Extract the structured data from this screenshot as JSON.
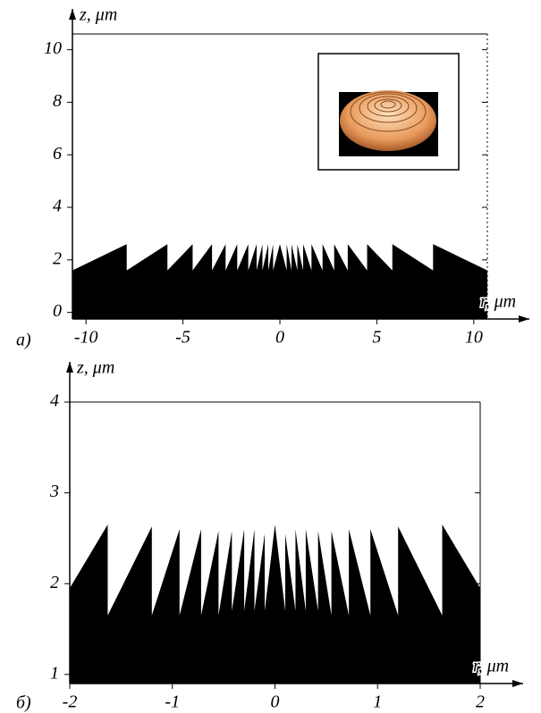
{
  "chart_data": [
    {
      "type": "area",
      "panel_label": "a)",
      "x_label": "r, μm",
      "y_label": "z, μm",
      "xlim": [
        -10.7,
        10.7
      ],
      "ylim": [
        -0.25,
        10.6
      ],
      "xticks": [
        -10,
        -5,
        0,
        5,
        10
      ],
      "yticks": [
        0,
        2,
        4,
        6,
        8,
        10
      ],
      "series": [
        {
          "color": "#000000",
          "x": [
            -10.7,
            -7.9,
            -7.9,
            -5.8,
            -5.8,
            -4.5,
            -4.5,
            -3.5,
            -3.5,
            -2.8,
            -2.8,
            -2.2,
            -2.2,
            -1.63,
            -1.63,
            -1.2,
            -1.2,
            -0.9,
            -0.9,
            -0.6,
            -0.6,
            -0.35,
            -0.35,
            0,
            0.35,
            0.35,
            0.6,
            0.6,
            0.9,
            0.9,
            1.2,
            1.2,
            1.63,
            1.63,
            2.2,
            2.2,
            2.8,
            2.8,
            3.5,
            3.5,
            4.5,
            4.5,
            5.8,
            5.8,
            7.9,
            7.9,
            10.7
          ],
          "values": [
            1.6,
            2.6,
            1.6,
            2.6,
            1.6,
            2.6,
            1.6,
            2.6,
            1.6,
            2.6,
            1.6,
            2.6,
            1.6,
            2.6,
            1.6,
            2.6,
            1.6,
            2.6,
            1.6,
            2.6,
            1.6,
            2.6,
            1.6,
            2.6,
            1.6,
            2.6,
            1.6,
            2.6,
            1.6,
            2.6,
            1.6,
            2.6,
            1.6,
            2.6,
            1.6,
            2.6,
            1.6,
            2.6,
            1.6,
            2.6,
            1.6,
            2.6,
            1.6,
            2.6,
            1.6,
            2.6,
            1.6
          ]
        }
      ]
    },
    {
      "type": "area",
      "panel_label": "б)",
      "x_label": "r, μm",
      "y_label": "z, μm",
      "xlim": [
        -2,
        2
      ],
      "ylim": [
        0.9,
        4
      ],
      "xticks": [
        -2,
        -1,
        0,
        1,
        2
      ],
      "yticks": [
        1,
        2,
        3,
        4
      ],
      "series": [
        {
          "color": "#000000",
          "x": [
            -2,
            -1.63,
            -1.63,
            -1.2,
            -1.2,
            -0.93,
            -0.93,
            -0.72,
            -0.72,
            -0.55,
            -0.55,
            -0.42,
            -0.42,
            -0.3,
            -0.3,
            -0.2,
            -0.2,
            -0.1,
            -0.1,
            0,
            0.1,
            0.1,
            0.2,
            0.2,
            0.3,
            0.3,
            0.42,
            0.42,
            0.55,
            0.55,
            0.72,
            0.72,
            0.93,
            0.93,
            1.2,
            1.2,
            1.63,
            1.63,
            2
          ],
          "values": [
            1.95,
            2.65,
            1.65,
            2.63,
            1.65,
            2.6,
            1.65,
            2.6,
            1.65,
            2.58,
            1.65,
            2.58,
            1.7,
            2.6,
            1.7,
            2.6,
            1.7,
            2.55,
            1.7,
            2.65,
            1.7,
            2.55,
            1.7,
            2.6,
            1.7,
            2.6,
            1.7,
            2.58,
            1.65,
            2.58,
            1.65,
            2.6,
            1.65,
            2.6,
            1.65,
            2.63,
            1.65,
            2.65,
            1.95
          ]
        }
      ]
    }
  ]
}
